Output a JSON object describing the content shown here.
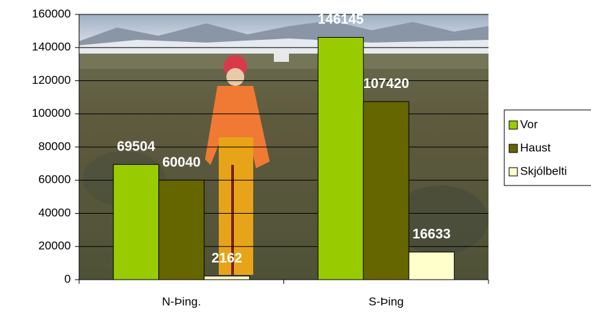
{
  "chart_data": {
    "type": "bar",
    "categories": [
      "N-Þing.",
      "S-Þing"
    ],
    "series": [
      {
        "name": "Vor",
        "color": "#99cc00",
        "values": [
          69504,
          146145
        ]
      },
      {
        "name": "Haust",
        "color": "#666600",
        "values": [
          60040,
          107420
        ]
      },
      {
        "name": "Skjólbelti",
        "color": "#ffffcc",
        "values": [
          2162,
          16633
        ]
      }
    ],
    "ylim": [
      0,
      160000
    ],
    "yticks": [
      0,
      20000,
      40000,
      60000,
      80000,
      100000,
      120000,
      140000,
      160000
    ],
    "grid": true,
    "data_labels": true,
    "legend": "right"
  }
}
